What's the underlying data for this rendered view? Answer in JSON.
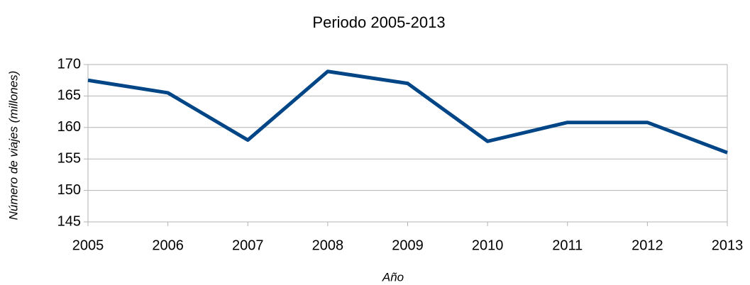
{
  "chart_data": {
    "type": "line",
    "title": "Periodo 2005-2013",
    "y_label": "Número de viajes (millones)",
    "x_label": "Año",
    "x": [
      2005,
      2006,
      2007,
      2008,
      2009,
      2010,
      2011,
      2012,
      2013
    ],
    "series": [
      {
        "color": "#004586",
        "values": [
          167.5,
          165.5,
          158,
          168.9,
          167,
          157.8,
          160.8,
          160.8,
          156
        ]
      }
    ],
    "xlim": [
      2005,
      2013
    ],
    "xticks": [
      2005,
      2006,
      2007,
      2008,
      2009,
      2010,
      2011,
      2012,
      2013
    ],
    "ylim": [
      145,
      170
    ],
    "yticks": [
      145,
      150,
      155,
      160,
      165,
      170
    ],
    "grid": true
  }
}
